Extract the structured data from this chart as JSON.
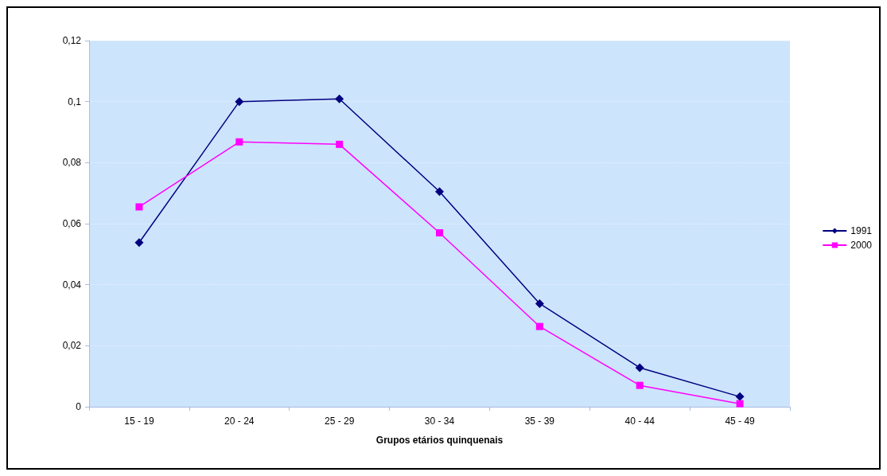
{
  "chart_data": {
    "type": "line",
    "xlabel": "Grupos etários quinquenais",
    "categories": [
      "15 - 19",
      "20 - 24",
      "25 - 29",
      "30 - 34",
      "35 - 39",
      "40 - 44",
      "45 - 49"
    ],
    "series": [
      {
        "name": "1991",
        "color": "#000080",
        "marker": "diamond",
        "values": [
          0.0538,
          0.1,
          0.1009,
          0.0705,
          0.0338,
          0.0128,
          0.0033
        ]
      },
      {
        "name": "2000",
        "color": "#ff00ff",
        "marker": "square",
        "values": [
          0.0655,
          0.0868,
          0.086,
          0.057,
          0.0263,
          0.007,
          0.001
        ]
      }
    ],
    "ylim": [
      0,
      0.12
    ],
    "yticks": [
      {
        "value": 0,
        "label": "0"
      },
      {
        "value": 0.02,
        "label": "0,02"
      },
      {
        "value": 0.04,
        "label": "0,04"
      },
      {
        "value": 0.06,
        "label": "0,06"
      },
      {
        "value": 0.08,
        "label": "0,08"
      },
      {
        "value": 0.1,
        "label": "0,1"
      },
      {
        "value": 0.12,
        "label": "0,12"
      }
    ],
    "grid": "y",
    "legend": "right",
    "line_style": "solid"
  }
}
